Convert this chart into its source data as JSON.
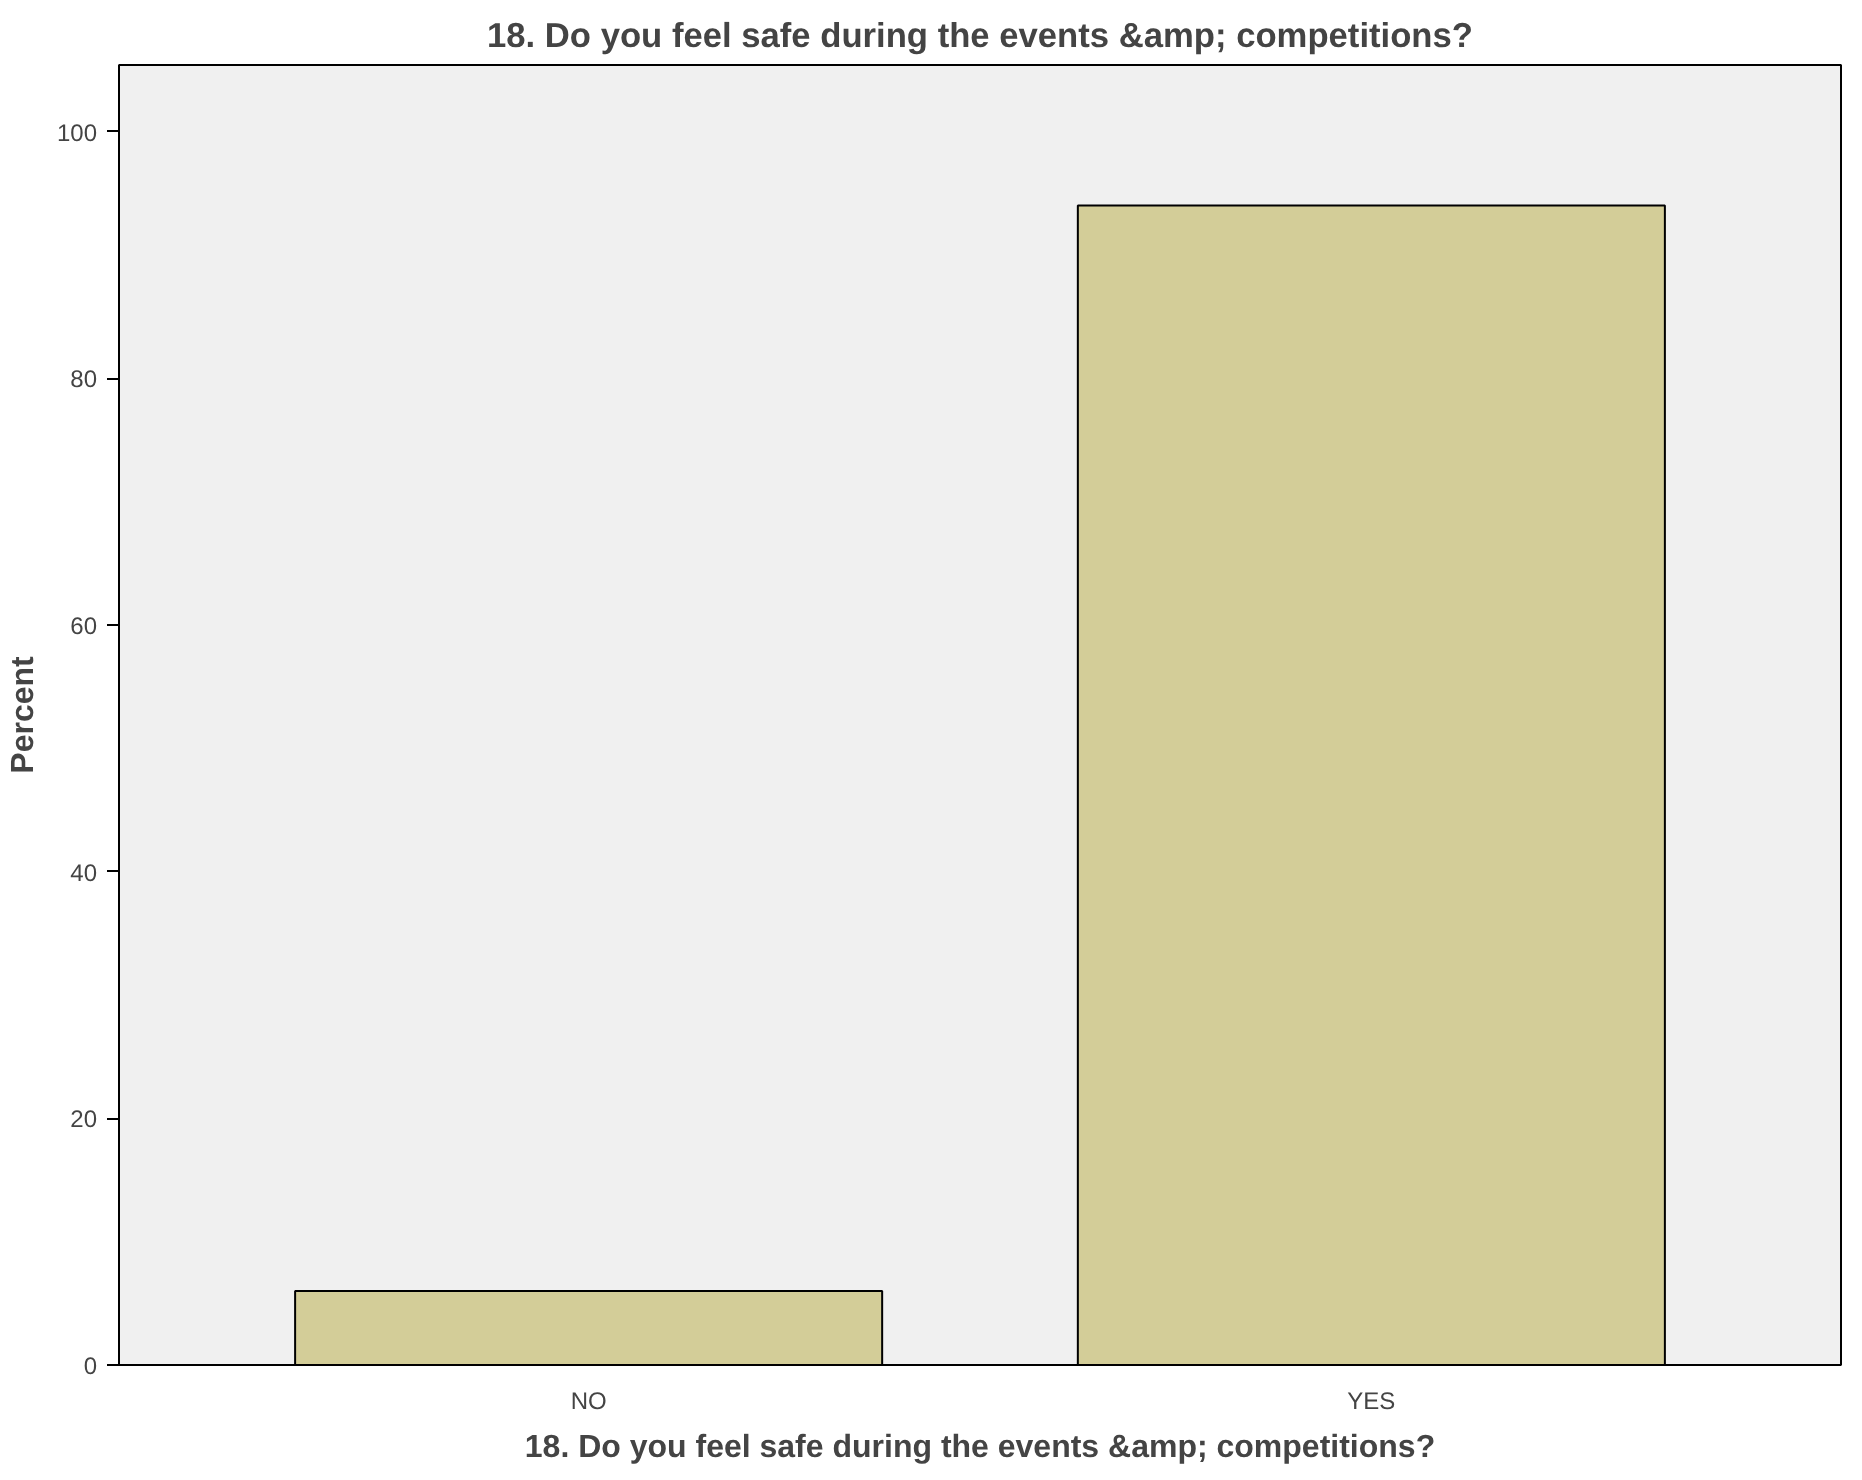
{
  "chart_data": {
    "type": "bar",
    "title": "18. Do you feel safe during the events &amp; competitions?",
    "xlabel": "18. Do you feel safe during the events &amp; competitions?",
    "ylabel": "Percent",
    "categories": [
      "NO",
      "YES"
    ],
    "values": [
      6,
      94
    ],
    "color": "#d3cd98",
    "ylim": [
      0,
      105.4
    ],
    "yticks": [
      0,
      20,
      40,
      60,
      80,
      100
    ],
    "grid": false
  }
}
